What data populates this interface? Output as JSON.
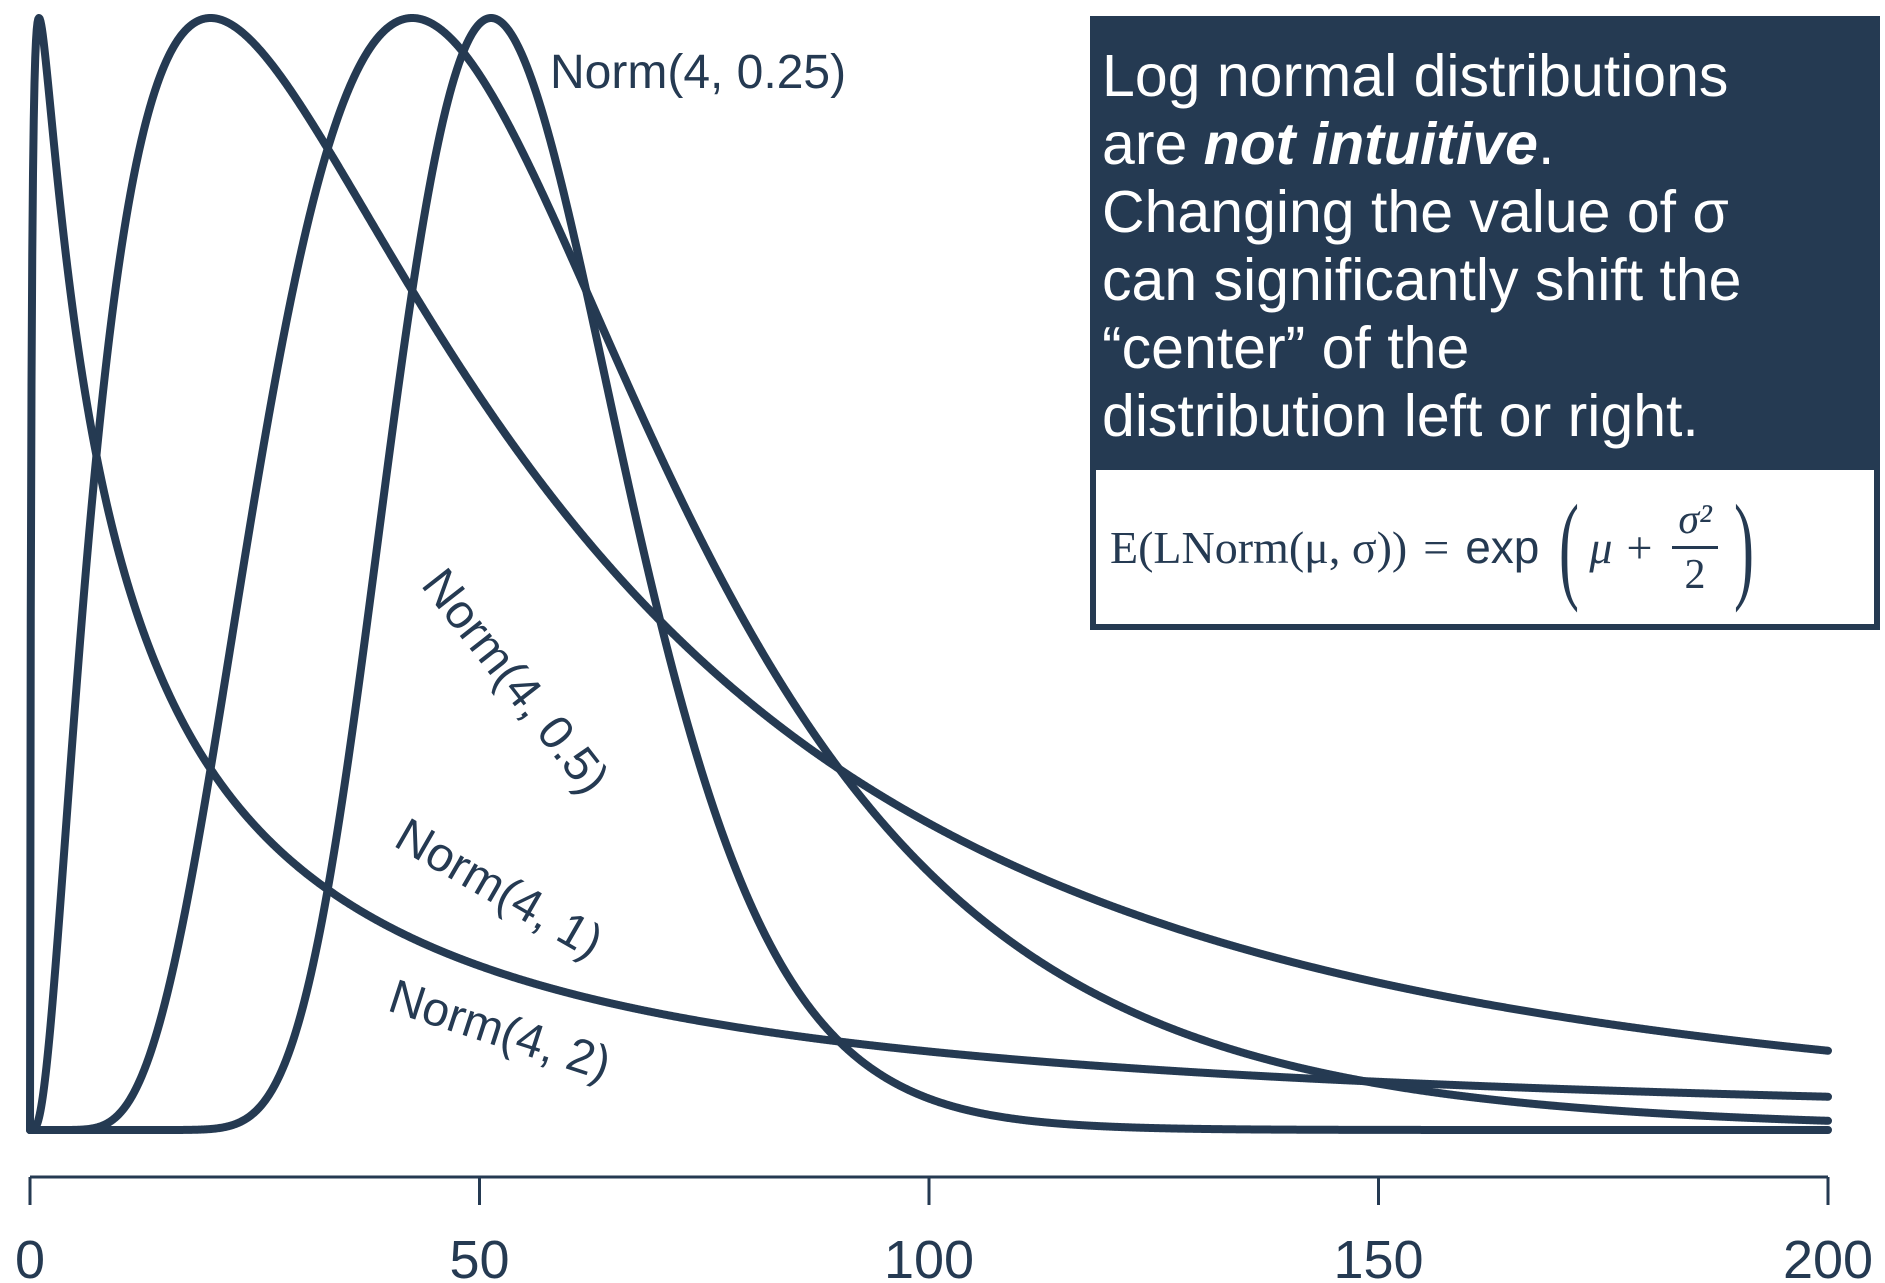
{
  "chart_data": {
    "type": "line",
    "xlim": [
      0,
      200
    ],
    "x_ticks": [
      "0",
      "50",
      "100",
      "150",
      "200"
    ],
    "x_tick_values": [
      0,
      50,
      100,
      150,
      200
    ],
    "series": [
      {
        "name": "Norm(4, 0.25)",
        "mu": 4,
        "sigma": 0.25
      },
      {
        "name": "Norm(4, 0.5)",
        "mu": 4,
        "sigma": 0.5
      },
      {
        "name": "Norm(4, 1)",
        "mu": 4,
        "sigma": 1
      },
      {
        "name": "Norm(4, 2)",
        "mu": 4,
        "sigma": 2
      }
    ],
    "normalization": "each curve scaled to its own peak height",
    "color": "#253a52"
  },
  "note": {
    "line1": "Log normal distributions",
    "line2_pre": "are ",
    "line2_em": "not intuitive",
    "line2_post": ".",
    "line3": "Changing the value of σ",
    "line4": "can significantly shift the",
    "line5": "“center” of the",
    "line6": "distribution left or right."
  },
  "formula": {
    "lhs": "E(LNorm(μ, σ))",
    "eq": "=",
    "fn": "exp",
    "mu": "μ",
    "plus": "+",
    "num": "σ²",
    "den": "2"
  },
  "colors": {
    "ink": "#253a52",
    "background": "#ffffff"
  }
}
